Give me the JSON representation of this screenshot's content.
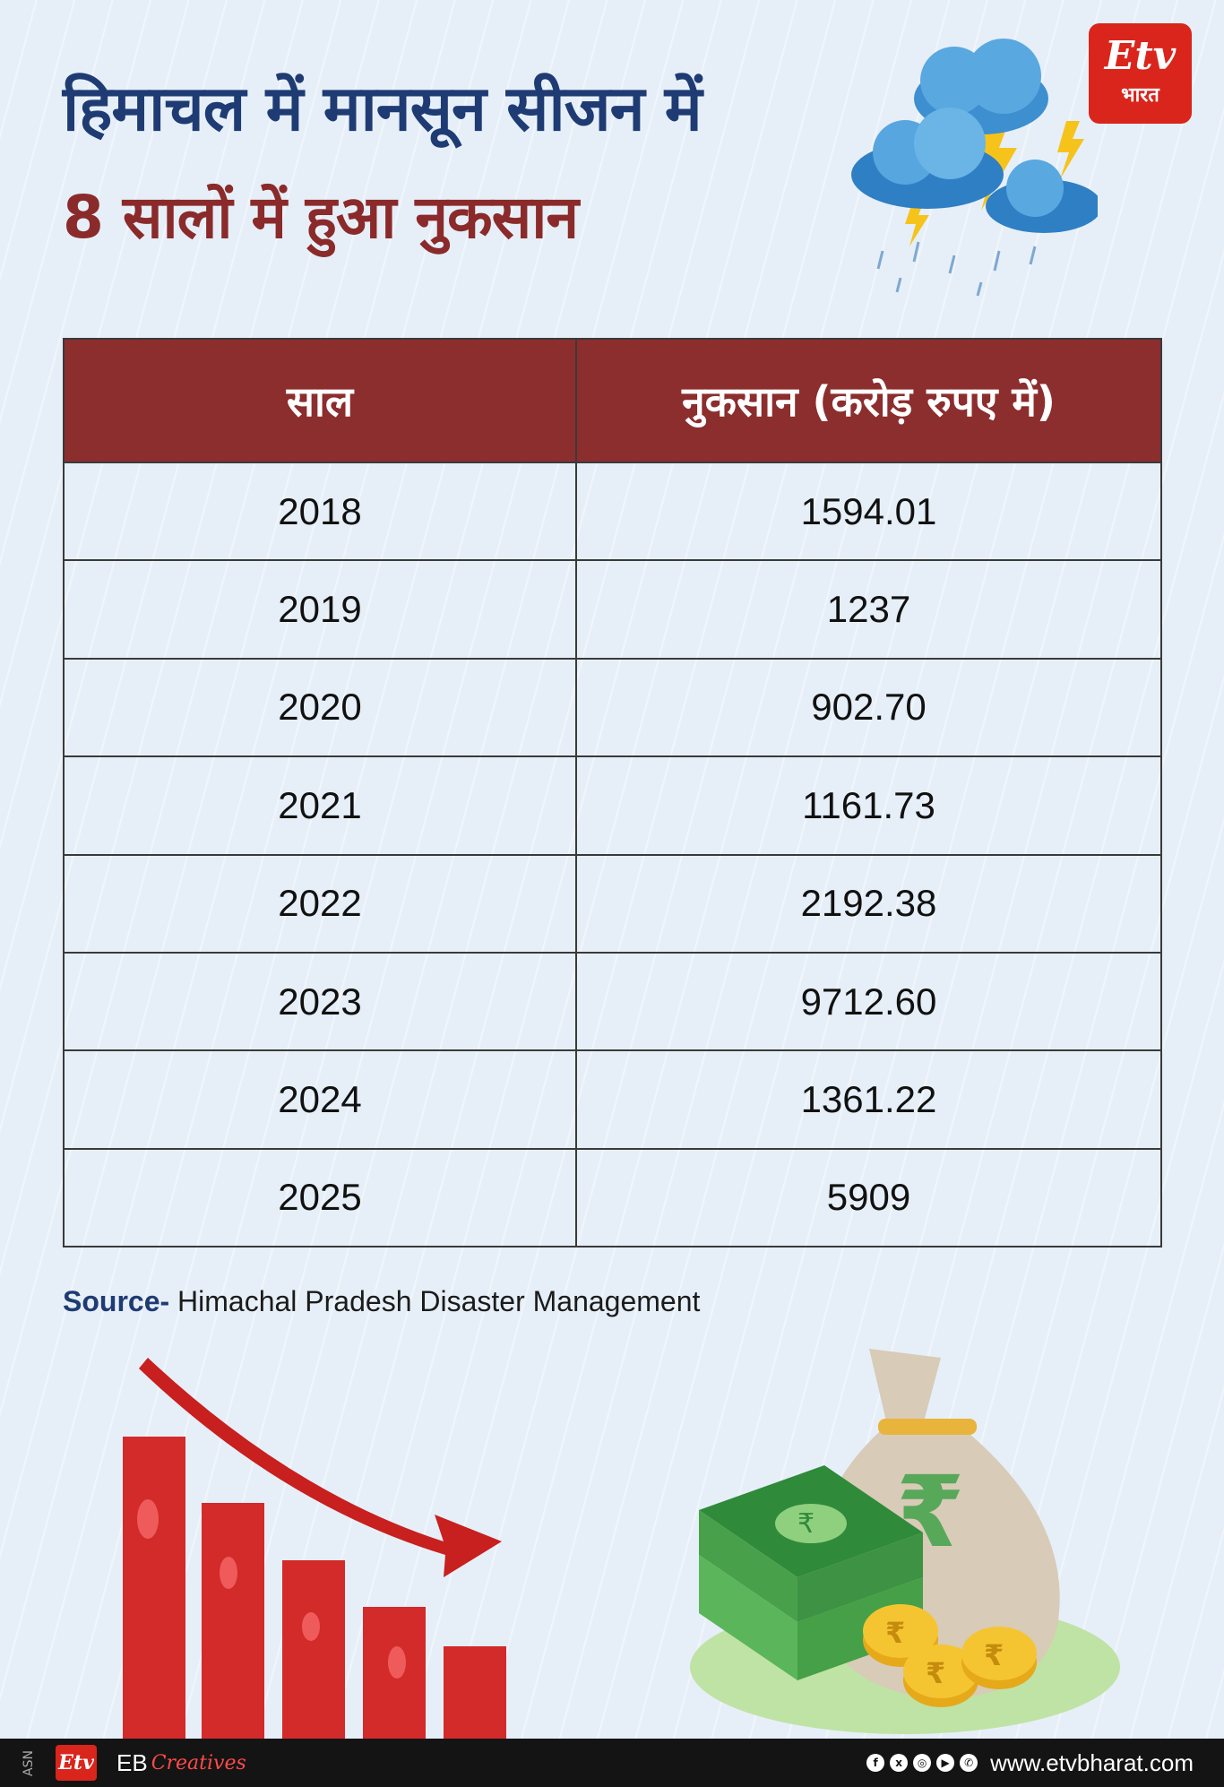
{
  "title": {
    "line1": "हिमाचल में मानसून सीजन में",
    "line2": "8 सालों में हुआ नुकसान"
  },
  "logo": {
    "mark": "Etv",
    "text": "भारत"
  },
  "table": {
    "headers": [
      "साल",
      "नुकसान (करोड़ रुपए में)"
    ],
    "rows": [
      {
        "year": "2018",
        "loss": "1594.01"
      },
      {
        "year": "2019",
        "loss": "1237"
      },
      {
        "year": "2020",
        "loss": "902.70"
      },
      {
        "year": "2021",
        "loss": "1161.73"
      },
      {
        "year": "2022",
        "loss": "2192.38"
      },
      {
        "year": "2023",
        "loss": "9712.60"
      },
      {
        "year": "2024",
        "loss": "1361.22"
      },
      {
        "year": "2025",
        "loss": "5909"
      }
    ]
  },
  "source": {
    "label": "Source-",
    "text": " Himachal Pradesh Disaster Management"
  },
  "footer": {
    "asn": "ASN",
    "logo": "Etv",
    "eb": "EB",
    "creatives": "Creatives",
    "site": "www.etvbharat.com",
    "socials": [
      "f",
      "x",
      "◎",
      "▶",
      "✆"
    ]
  },
  "colors": {
    "title_blue": "#1f3b73",
    "title_red": "#8b2a2a",
    "header_bg": "#8c2d2e",
    "logo_red": "#d9251c"
  },
  "icons": [
    "storm-cloud-icon",
    "lightning-icon",
    "bar-chart-decline-icon",
    "down-arrow-icon",
    "money-bag-icon",
    "rupee-icon",
    "cash-stack-icon",
    "coin-icon"
  ]
}
